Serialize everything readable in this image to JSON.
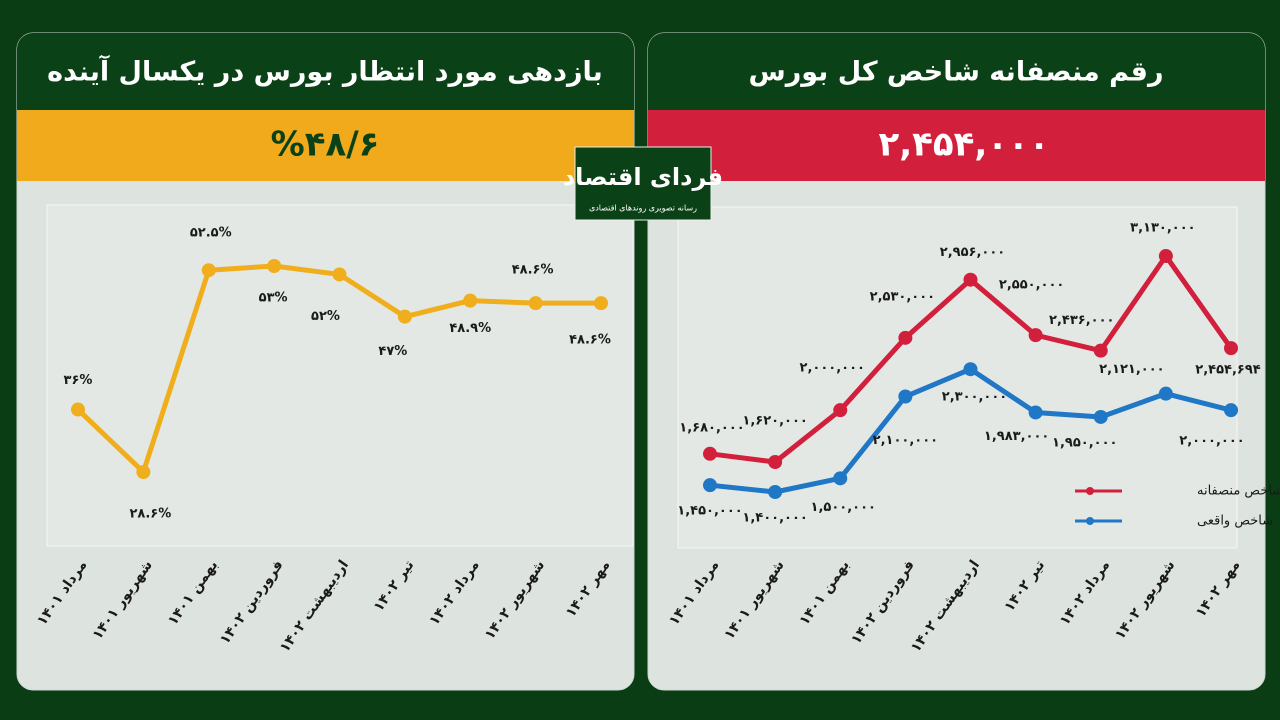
{
  "brand": {
    "name": "فردای اقتصاد",
    "tagline": "رسانه تصویری روندهای اقتصادی"
  },
  "chart_data": [
    {
      "type": "line",
      "title": "بازدهی مورد انتظار بورس در یکسال آینده",
      "subtitle": "%۴۸/۶",
      "categories": [
        "مرداد ۱۴۰۱",
        "شهریور ۱۴۰۱",
        "بهمن ۱۴۰۱",
        "فروردین ۱۴۰۲",
        "اردیبهشت ۱۴۰۲",
        "تیر ۱۴۰۲",
        "مرداد ۱۴۰۲",
        "شهریور ۱۴۰۲",
        "مهر ۱۴۰۲"
      ],
      "values": [
        36,
        28.6,
        52.5,
        53,
        52,
        47,
        48.9,
        48.6,
        48.6
      ],
      "value_labels": [
        "۳۶%",
        "۲۸.۶%",
        "۵۲.۵%",
        "۵۳%",
        "۵۲%",
        "۴۷%",
        "۴۸.۹%",
        "۴۸.۶%",
        "۴۸.۶%"
      ],
      "color": "#f0ae1c"
    },
    {
      "type": "line",
      "title": "رقم منصفانه شاخص کل بورس",
      "subtitle": "۲,۴۵۴,۰۰۰",
      "categories": [
        "مرداد ۱۴۰۱",
        "شهریور ۱۴۰۱",
        "بهمن ۱۴۰۱",
        "فروردین ۱۴۰۲",
        "اردیبهشت ۱۴۰۲",
        "تیر ۱۴۰۲",
        "مرداد ۱۴۰۲",
        "شهریور ۱۴۰۲",
        "مهر ۱۴۰۲"
      ],
      "legend": "lower right",
      "series": [
        {
          "name": "شاخص منصفانه",
          "color": "#d21f3c",
          "values": [
            1680000,
            1620000,
            2000000,
            2530000,
            2956000,
            2550000,
            2436000,
            3130000,
            2454694
          ],
          "value_labels": [
            "۱,۶۸۰,۰۰۰",
            "۱,۶۲۰,۰۰۰",
            "۲,۰۰۰,۰۰۰",
            "۲,۵۳۰,۰۰۰",
            "۲,۹۵۶,۰۰۰",
            "۲,۵۵۰,۰۰۰",
            "۲,۴۳۶,۰۰۰",
            "۳,۱۳۰,۰۰۰",
            "۲,۴۵۴,۶۹۴"
          ]
        },
        {
          "name": "شاخص واقعی",
          "color": "#1f77c6",
          "values": [
            1450000,
            1400000,
            1500000,
            2100000,
            2300000,
            1983000,
            1950000,
            2121000,
            2000000
          ],
          "value_labels": [
            "۱,۴۵۰,۰۰۰",
            "۱,۴۰۰,۰۰۰",
            "۱,۵۰۰,۰۰۰",
            "۲,۱۰۰,۰۰۰",
            "۲,۳۰۰,۰۰۰",
            "۱,۹۸۳,۰۰۰",
            "۱,۹۵۰,۰۰۰",
            "۲,۱۲۱,۰۰۰",
            "۲,۰۰۰,۰۰۰"
          ]
        }
      ]
    }
  ]
}
